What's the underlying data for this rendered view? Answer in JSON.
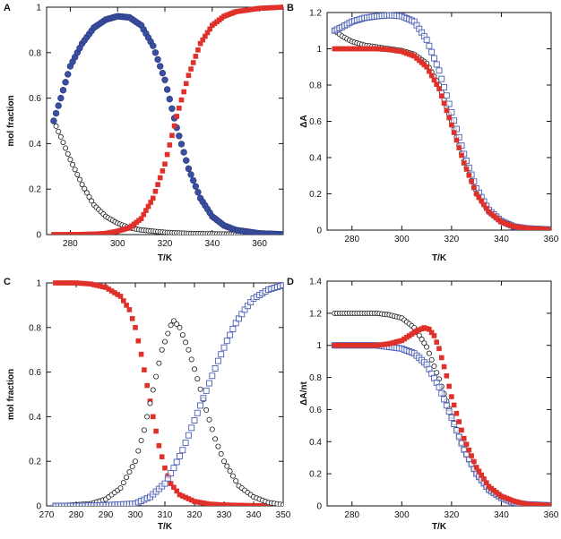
{
  "chart_data": [
    {
      "panel": "A",
      "type": "scatter",
      "xlabel": "T/K",
      "ylabel": "mol fraction",
      "xlim": [
        270,
        370
      ],
      "ylim": [
        0,
        1
      ],
      "xticks": [
        "280",
        "300",
        "320",
        "340",
        "360"
      ],
      "yticks": [
        "0",
        "0.2",
        "0.4",
        "0.6",
        "0.8",
        "1"
      ],
      "series": [
        {
          "name": "black",
          "marker": "open-circle",
          "color": "#1a1a1a",
          "x": [
            273,
            276,
            280,
            285,
            290,
            295,
            300,
            305,
            310,
            315,
            320,
            330,
            340,
            350,
            360,
            370
          ],
          "y": [
            0.5,
            0.43,
            0.33,
            0.22,
            0.13,
            0.08,
            0.05,
            0.03,
            0.02,
            0.015,
            0.01,
            0.005,
            0.003,
            0.002,
            0.001,
            0.001
          ]
        },
        {
          "name": "blue",
          "marker": "filled-circle",
          "color": "#3a4fa0",
          "x": [
            273,
            276,
            280,
            285,
            290,
            295,
            300,
            305,
            310,
            315,
            320,
            325,
            330,
            335,
            340,
            345,
            350,
            360,
            370
          ],
          "y": [
            0.5,
            0.6,
            0.74,
            0.84,
            0.91,
            0.945,
            0.96,
            0.955,
            0.92,
            0.83,
            0.68,
            0.47,
            0.29,
            0.16,
            0.08,
            0.04,
            0.02,
            0.005,
            0.001
          ]
        },
        {
          "name": "red",
          "marker": "filled-square",
          "color": "#e0302a",
          "x": [
            273,
            280,
            290,
            295,
            300,
            305,
            310,
            315,
            320,
            325,
            330,
            335,
            340,
            345,
            350,
            360,
            370
          ],
          "y": [
            0.0,
            0.0,
            0.002,
            0.005,
            0.015,
            0.03,
            0.07,
            0.16,
            0.31,
            0.52,
            0.7,
            0.84,
            0.92,
            0.96,
            0.98,
            0.995,
            1.0
          ]
        }
      ]
    },
    {
      "panel": "B",
      "type": "scatter",
      "xlabel": "T/K",
      "ylabel": "ΔA",
      "xlim": [
        270,
        360
      ],
      "ylim": [
        0,
        1.2
      ],
      "xticks": [
        "280",
        "300",
        "320",
        "340",
        "360"
      ],
      "yticks": [
        "0",
        "0.2",
        "0.4",
        "0.6",
        "0.8",
        "1",
        "1.2"
      ],
      "series": [
        {
          "name": "black",
          "marker": "open-circle",
          "color": "#1a1a1a",
          "x": [
            273,
            276,
            280,
            285,
            290,
            295,
            300,
            305,
            310,
            315,
            320,
            325,
            330,
            335,
            340,
            345,
            350,
            360
          ],
          "y": [
            1.1,
            1.07,
            1.04,
            1.02,
            1.01,
            1.0,
            0.99,
            0.97,
            0.92,
            0.8,
            0.6,
            0.38,
            0.2,
            0.1,
            0.05,
            0.02,
            0.01,
            0.003
          ]
        },
        {
          "name": "blue",
          "marker": "open-square",
          "color": "#4a5fb5",
          "x": [
            273,
            276,
            280,
            285,
            290,
            295,
            300,
            305,
            310,
            315,
            320,
            325,
            330,
            335,
            340,
            345,
            350,
            360
          ],
          "y": [
            1.1,
            1.12,
            1.15,
            1.17,
            1.18,
            1.185,
            1.18,
            1.15,
            1.05,
            0.88,
            0.65,
            0.42,
            0.23,
            0.11,
            0.05,
            0.02,
            0.01,
            0.003
          ]
        },
        {
          "name": "red",
          "marker": "filled-square",
          "color": "#e0302a",
          "x": [
            273,
            276,
            280,
            285,
            290,
            295,
            300,
            305,
            310,
            315,
            320,
            325,
            330,
            335,
            340,
            345,
            350,
            360
          ],
          "y": [
            1.0,
            1.0,
            1.0,
            1.0,
            1.0,
            0.995,
            0.985,
            0.96,
            0.9,
            0.78,
            0.58,
            0.37,
            0.2,
            0.1,
            0.045,
            0.02,
            0.01,
            0.003
          ]
        }
      ]
    },
    {
      "panel": "C",
      "type": "scatter",
      "xlabel": "T/K",
      "ylabel": "mol fraction",
      "xlim": [
        270,
        350
      ],
      "ylim": [
        0,
        1
      ],
      "xticks": [
        "270",
        "280",
        "290",
        "300",
        "310",
        "320",
        "330",
        "340",
        "350"
      ],
      "yticks": [
        "0",
        "0.2",
        "0.4",
        "0.6",
        "0.8",
        "1"
      ],
      "series": [
        {
          "name": "red",
          "marker": "filled-square",
          "color": "#e0302a",
          "x": [
            273,
            280,
            285,
            290,
            295,
            298,
            300,
            302,
            304,
            306,
            308,
            310,
            312,
            315,
            320,
            325,
            330,
            340,
            350
          ],
          "y": [
            1.0,
            1.0,
            0.995,
            0.98,
            0.94,
            0.88,
            0.8,
            0.68,
            0.54,
            0.4,
            0.27,
            0.17,
            0.1,
            0.05,
            0.02,
            0.008,
            0.004,
            0.001,
            0.0
          ]
        },
        {
          "name": "black",
          "marker": "open-circle",
          "color": "#1a1a1a",
          "x": [
            273,
            280,
            285,
            290,
            295,
            300,
            303,
            306,
            309,
            312,
            313,
            315,
            318,
            321,
            324,
            327,
            330,
            335,
            340,
            345,
            350
          ],
          "y": [
            0.0,
            0.005,
            0.01,
            0.03,
            0.08,
            0.2,
            0.34,
            0.52,
            0.7,
            0.81,
            0.83,
            0.8,
            0.7,
            0.57,
            0.43,
            0.3,
            0.2,
            0.09,
            0.04,
            0.015,
            0.005
          ]
        },
        {
          "name": "blue",
          "marker": "open-square",
          "color": "#4a5fb5",
          "x": [
            273,
            280,
            290,
            300,
            305,
            310,
            313,
            316,
            319,
            322,
            325,
            328,
            331,
            334,
            337,
            340,
            345,
            350
          ],
          "y": [
            0.0,
            0.0,
            0.003,
            0.01,
            0.04,
            0.1,
            0.17,
            0.25,
            0.35,
            0.45,
            0.55,
            0.65,
            0.74,
            0.82,
            0.88,
            0.93,
            0.97,
            0.99
          ]
        }
      ]
    },
    {
      "panel": "D",
      "type": "scatter",
      "xlabel": "T/K",
      "ylabel": "ΔA/nt",
      "xlim": [
        270,
        360
      ],
      "ylim": [
        0,
        1.4
      ],
      "xticks": [
        "280",
        "300",
        "320",
        "340",
        "360"
      ],
      "yticks": [
        "0",
        "0.2",
        "0.4",
        "0.6",
        "0.8",
        "1",
        "1.2",
        "1.4"
      ],
      "series": [
        {
          "name": "black",
          "marker": "open-circle",
          "color": "#1a1a1a",
          "x": [
            273,
            280,
            285,
            290,
            295,
            300,
            305,
            310,
            315,
            320,
            325,
            330,
            335,
            340,
            345,
            350,
            360
          ],
          "y": [
            1.2,
            1.2,
            1.2,
            1.2,
            1.19,
            1.17,
            1.11,
            0.99,
            0.79,
            0.56,
            0.35,
            0.2,
            0.1,
            0.05,
            0.02,
            0.01,
            0.003
          ]
        },
        {
          "name": "blue",
          "marker": "open-square",
          "color": "#4a5fb5",
          "x": [
            273,
            280,
            285,
            290,
            295,
            300,
            305,
            310,
            315,
            320,
            325,
            330,
            335,
            340,
            345,
            350,
            360
          ],
          "y": [
            1.0,
            1.0,
            1.0,
            1.0,
            0.99,
            0.98,
            0.95,
            0.88,
            0.74,
            0.55,
            0.35,
            0.2,
            0.1,
            0.05,
            0.02,
            0.01,
            0.003
          ]
        },
        {
          "name": "red",
          "marker": "filled-square",
          "color": "#e0302a",
          "x": [
            273,
            280,
            285,
            290,
            295,
            300,
            303,
            306,
            309,
            311,
            313,
            315,
            318,
            320,
            325,
            330,
            335,
            340,
            345,
            350,
            360
          ],
          "y": [
            1.0,
            1.0,
            1.0,
            1.0,
            1.01,
            1.03,
            1.06,
            1.09,
            1.11,
            1.1,
            1.06,
            0.98,
            0.81,
            0.68,
            0.42,
            0.24,
            0.12,
            0.06,
            0.03,
            0.01,
            0.003
          ]
        }
      ]
    }
  ]
}
